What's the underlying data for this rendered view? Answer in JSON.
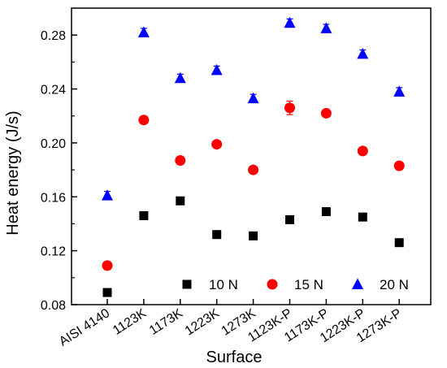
{
  "chart_data": {
    "type": "scatter",
    "xlabel": "Surface",
    "ylabel": "Heat energy (J/s)",
    "categories": [
      "AISI 4140",
      "1123K",
      "1173K",
      "1223K",
      "1273K",
      "1123K-P",
      "1173K-P",
      "1223K-P",
      "1273K-P"
    ],
    "ylim": [
      0.08,
      0.3
    ],
    "yticks": [
      "0.08",
      "0.12",
      "0.16",
      "0.20",
      "0.24",
      "0.28"
    ],
    "grid": false,
    "legend_position": "bottom-right",
    "series": [
      {
        "name": "10 N",
        "marker": "square",
        "color": "#000000",
        "values": [
          0.089,
          0.146,
          0.157,
          0.132,
          0.131,
          0.143,
          0.149,
          0.145,
          0.126
        ],
        "errors": [
          0.002,
          0.002,
          0.002,
          0.002,
          0.002,
          0.002,
          0.002,
          0.002,
          0.002
        ]
      },
      {
        "name": "15 N",
        "marker": "circle",
        "color": "#ff0000",
        "values": [
          0.109,
          0.217,
          0.187,
          0.199,
          0.18,
          0.226,
          0.222,
          0.194,
          0.183
        ],
        "errors": [
          0.002,
          0.002,
          0.002,
          0.002,
          0.002,
          0.005,
          0.002,
          0.002,
          0.002
        ]
      },
      {
        "name": "20 N",
        "marker": "triangle",
        "color": "#0000ff",
        "values": [
          0.161,
          0.282,
          0.248,
          0.254,
          0.233,
          0.289,
          0.285,
          0.266,
          0.238
        ],
        "errors": [
          0.003,
          0.003,
          0.003,
          0.003,
          0.003,
          0.003,
          0.003,
          0.003,
          0.003
        ]
      }
    ]
  }
}
